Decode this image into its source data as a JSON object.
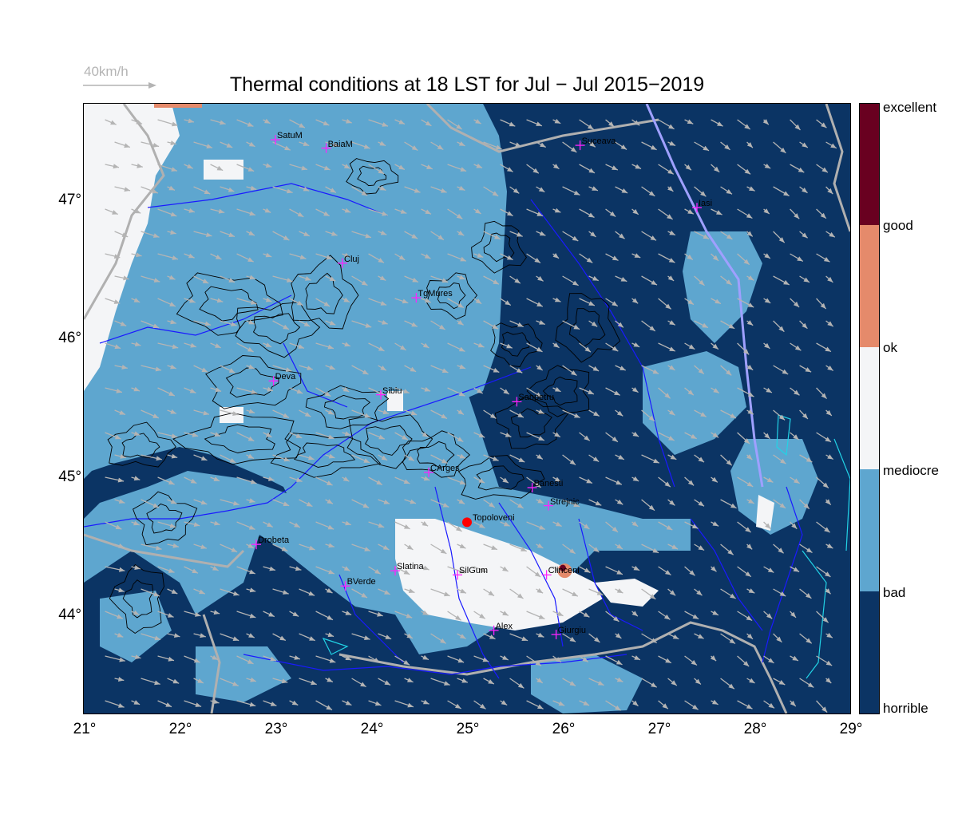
{
  "title": "Thermal conditions at 18 LST for Jul − Jul  2015−2019",
  "wind_reference": {
    "label": "40km/h",
    "color": "#b4b4b4"
  },
  "colors": {
    "horrible": "#0b3464",
    "bad": "#5ea6cf",
    "mediocre": "#f4f5f7",
    "ok": "#e58a6b",
    "good": "#690020",
    "arrow": "#b4b4b4",
    "contour": "#000000",
    "river": "#1a1aff",
    "border": "#b0b0b0",
    "lake": "#22d3e6",
    "site_marker": "#ff0000",
    "city_marker": "#ff22ff"
  },
  "map": {
    "lon_range": [
      21,
      29
    ],
    "lat_range": [
      43.3,
      47.7
    ],
    "lon_ticks": [
      "21°",
      "22°",
      "23°",
      "24°",
      "25°",
      "26°",
      "27°",
      "28°",
      "29°"
    ],
    "lat_ticks": [
      "44°",
      "45°",
      "46°",
      "47°"
    ]
  },
  "legend": {
    "categories": [
      "horrible",
      "bad",
      "mediocre",
      "ok",
      "good",
      "excellent"
    ]
  },
  "site": {
    "name": "Topoloveni",
    "lon": 25.0,
    "lat": 44.68
  },
  "cities": [
    {
      "name": "SatuM",
      "lon": 23.0,
      "lat": 47.44
    },
    {
      "name": "BaiaM",
      "lon": 23.53,
      "lat": 47.38
    },
    {
      "name": "Suceava",
      "lon": 26.18,
      "lat": 47.4
    },
    {
      "name": "Iasi",
      "lon": 27.4,
      "lat": 46.95
    },
    {
      "name": "Cluj",
      "lon": 23.7,
      "lat": 46.55
    },
    {
      "name": "TgMures",
      "lon": 24.47,
      "lat": 46.3
    },
    {
      "name": "Deva",
      "lon": 22.98,
      "lat": 45.7
    },
    {
      "name": "Sibiu",
      "lon": 24.1,
      "lat": 45.6
    },
    {
      "name": "Sanpetru",
      "lon": 25.52,
      "lat": 45.55
    },
    {
      "name": "CArges",
      "lon": 24.6,
      "lat": 45.04
    },
    {
      "name": "Banesti",
      "lon": 25.68,
      "lat": 44.93
    },
    {
      "name": "Strejnic",
      "lon": 25.85,
      "lat": 44.8
    },
    {
      "name": "Drobeta",
      "lon": 22.8,
      "lat": 44.52
    },
    {
      "name": "Slatina",
      "lon": 24.25,
      "lat": 44.33
    },
    {
      "name": "SilGum",
      "lon": 24.9,
      "lat": 44.3
    },
    {
      "name": "Clinceni",
      "lon": 25.83,
      "lat": 44.3
    },
    {
      "name": "BVerde",
      "lon": 23.73,
      "lat": 44.22
    },
    {
      "name": "Alex",
      "lon": 25.28,
      "lat": 43.9
    },
    {
      "name": "Giurgiu",
      "lon": 25.93,
      "lat": 43.87
    }
  ]
}
